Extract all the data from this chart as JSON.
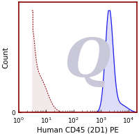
{
  "xlabel": "Human CD45 (2D1) PE",
  "ylabel": "Count",
  "xlim_log": [
    0.48,
    4.3
  ],
  "ylim": [
    0,
    1.08
  ],
  "background_color": "#ffffff",
  "border_color": "#8B0000",
  "watermark_color": "#c8c8d8",
  "isotype_line_color": "#8B0000",
  "isotype_fill_color": "#c8a0a0",
  "cd45_line_color": "#1a1aee",
  "cd45_fill_color": "#9090ee",
  "xlabel_fontsize": 7.5,
  "ylabel_fontsize": 7.5,
  "tick_fontsize": 6.5,
  "figsize": [
    2.0,
    1.95
  ],
  "dpi": 100
}
